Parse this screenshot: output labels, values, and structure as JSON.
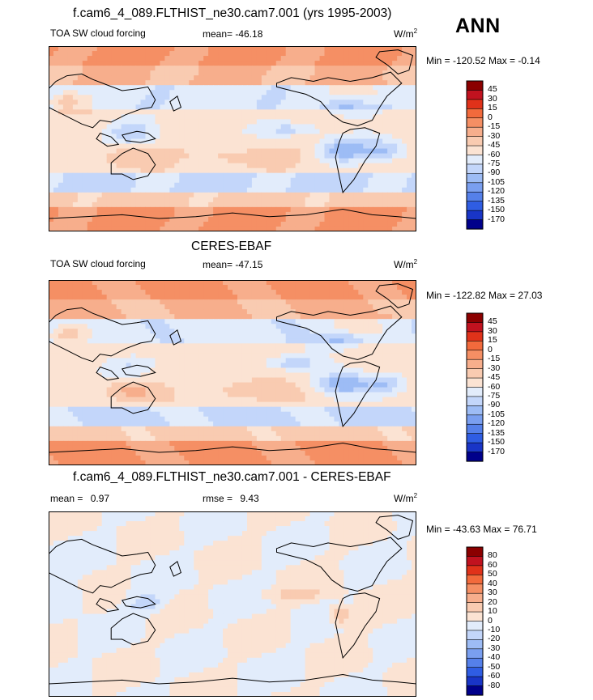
{
  "season": "ANN",
  "chart_data": [
    {
      "type": "heatmap",
      "title": "f.cam6_4_089.FLTHIST_ne30.cam7.001 (yrs 1995-2003)",
      "left_label": "TOA SW cloud forcing",
      "stat_label": "mean=",
      "stat_value": "-46.18",
      "units": "W/m",
      "units_exp": "2",
      "minmax": "Min = -120.52 Max =  -0.14",
      "levels": [
        "45",
        "30",
        "15",
        "0",
        "-15",
        "-30",
        "-45",
        "-60",
        "-75",
        "-90",
        "-105",
        "-120",
        "-135",
        "-150",
        "-170"
      ],
      "colors": [
        "#8b0000",
        "#c1121f",
        "#e0321a",
        "#f26a3c",
        "#f58f64",
        "#f7ae8c",
        "#f9cbb1",
        "#fbe3d3",
        "#e2ecfb",
        "#c3d6fa",
        "#9dbcf5",
        "#7a9ff0",
        "#5580ea",
        "#2f5de3",
        "#1935c7",
        "#00008b"
      ],
      "field": "model"
    },
    {
      "type": "heatmap",
      "title": "CERES-EBAF",
      "left_label": "TOA SW cloud forcing",
      "stat_label": "mean=",
      "stat_value": "-47.15",
      "units": "W/m",
      "units_exp": "2",
      "minmax": "Min = -122.82 Max =  27.03",
      "levels": [
        "45",
        "30",
        "15",
        "0",
        "-15",
        "-30",
        "-45",
        "-60",
        "-75",
        "-90",
        "-105",
        "-120",
        "-135",
        "-150",
        "-170"
      ],
      "colors": [
        "#8b0000",
        "#c1121f",
        "#e0321a",
        "#f26a3c",
        "#f58f64",
        "#f7ae8c",
        "#f9cbb1",
        "#fbe3d3",
        "#e2ecfb",
        "#c3d6fa",
        "#9dbcf5",
        "#7a9ff0",
        "#5580ea",
        "#2f5de3",
        "#1935c7",
        "#00008b"
      ],
      "field": "obs"
    },
    {
      "type": "heatmap",
      "title": "f.cam6_4_089.FLTHIST_ne30.cam7.001 - CERES-EBAF",
      "left_label": "mean =",
      "left_value": "0.97",
      "stat_label": "rmse =",
      "stat_value": "9.43",
      "units": "W/m",
      "units_exp": "2",
      "minmax": "Min = -43.63 Max =  76.71",
      "levels": [
        "80",
        "60",
        "50",
        "40",
        "30",
        "20",
        "10",
        "0",
        "-10",
        "-20",
        "-30",
        "-40",
        "-50",
        "-60",
        "-80"
      ],
      "colors": [
        "#8b0000",
        "#c1121f",
        "#e0321a",
        "#f26a3c",
        "#f58f64",
        "#f7ae8c",
        "#f9cbb1",
        "#fbe3d3",
        "#e2ecfb",
        "#c3d6fa",
        "#9dbcf5",
        "#7a9ff0",
        "#5580ea",
        "#2f5de3",
        "#1935c7",
        "#00008b"
      ],
      "field": "diff"
    }
  ]
}
